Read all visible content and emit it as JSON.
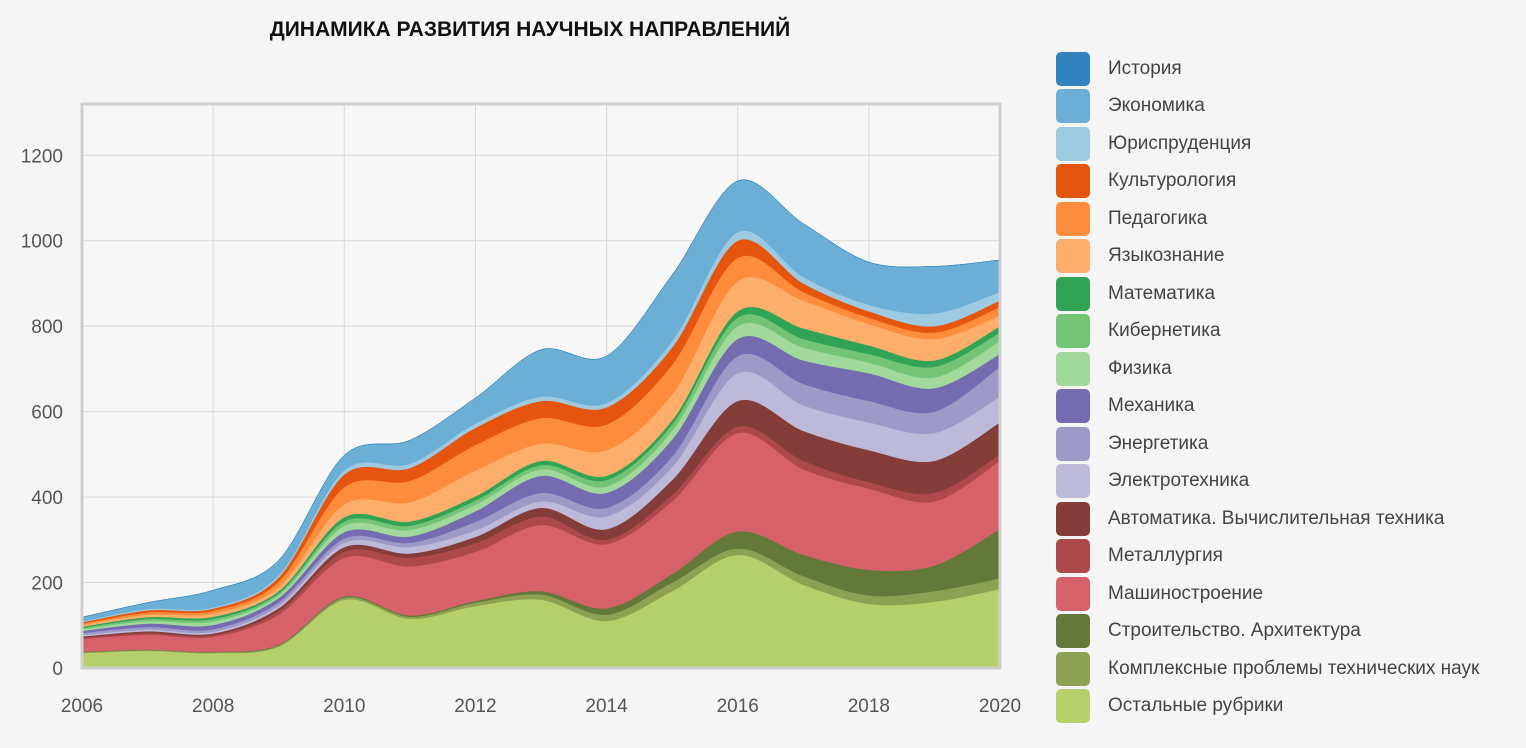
{
  "chart_data": {
    "type": "area",
    "stacked": true,
    "title": "ДИНАМИКА РАЗВИТИЯ НАУЧНЫХ НАПРАВЛЕНИЙ",
    "xlabel": "",
    "ylabel": "",
    "x": [
      2006,
      2007,
      2008,
      2009,
      2010,
      2011,
      2012,
      2013,
      2014,
      2015,
      2016,
      2017,
      2018,
      2019,
      2020
    ],
    "xlim": [
      2006,
      2020
    ],
    "ylim": [
      0,
      1320
    ],
    "x_ticks": [
      "2006",
      "2008",
      "2010",
      "2012",
      "2014",
      "2016",
      "2018",
      "2020"
    ],
    "y_ticks": [
      "0",
      "200",
      "400",
      "600",
      "800",
      "1000",
      "1200"
    ],
    "grid": true,
    "legend_position": "right",
    "series": [
      {
        "name": "Остальные рубрики",
        "color": "#b5cf6b",
        "values": [
          35,
          40,
          35,
          50,
          160,
          115,
          145,
          160,
          110,
          180,
          265,
          195,
          150,
          155,
          185
        ]
      },
      {
        "name": "Комплексные проблемы технических наук",
        "color": "#8ca252",
        "values": [
          2,
          2,
          2,
          3,
          5,
          5,
          8,
          12,
          15,
          20,
          15,
          20,
          20,
          25,
          25
        ]
      },
      {
        "name": "Строительство. Архитектура",
        "color": "#637939",
        "values": [
          1,
          1,
          1,
          2,
          3,
          3,
          4,
          8,
          15,
          20,
          40,
          50,
          60,
          60,
          115
        ]
      },
      {
        "name": "Машиностроение",
        "color": "#d6616b",
        "values": [
          30,
          35,
          35,
          70,
          90,
          115,
          115,
          155,
          150,
          170,
          230,
          200,
          190,
          150,
          160
        ]
      },
      {
        "name": "Металлургия",
        "color": "#ad494a",
        "values": [
          3,
          4,
          4,
          8,
          15,
          20,
          20,
          20,
          10,
          15,
          15,
          20,
          15,
          20,
          15
        ]
      },
      {
        "name": "Автоматика. Вычислительная техника",
        "color": "#843c39",
        "values": [
          3,
          4,
          4,
          7,
          10,
          10,
          15,
          20,
          25,
          35,
          60,
          70,
          75,
          75,
          75
        ]
      },
      {
        "name": "Электротехника",
        "color": "#bdbad9",
        "values": [
          3,
          4,
          4,
          6,
          10,
          15,
          15,
          15,
          30,
          30,
          65,
          60,
          65,
          65,
          60
        ]
      },
      {
        "name": "Энергетика",
        "color": "#9e9ac8",
        "values": [
          5,
          6,
          6,
          8,
          10,
          10,
          20,
          20,
          20,
          25,
          40,
          50,
          50,
          50,
          70
        ]
      },
      {
        "name": "Механика",
        "color": "#756bb1",
        "values": [
          5,
          8,
          10,
          10,
          15,
          15,
          25,
          40,
          35,
          40,
          40,
          55,
          65,
          55,
          30
        ]
      },
      {
        "name": "Физика",
        "color": "#a1d99b",
        "values": [
          4,
          6,
          8,
          6,
          15,
          15,
          15,
          15,
          15,
          20,
          30,
          30,
          25,
          25,
          30
        ]
      },
      {
        "name": "Кибернетика",
        "color": "#74c476",
        "values": [
          3,
          5,
          6,
          5,
          10,
          10,
          10,
          10,
          15,
          15,
          20,
          20,
          20,
          25,
          20
        ]
      },
      {
        "name": "Математика",
        "color": "#31a354",
        "values": [
          3,
          4,
          5,
          5,
          10,
          10,
          10,
          10,
          10,
          10,
          15,
          25,
          20,
          15,
          15
        ]
      },
      {
        "name": "Языкознание",
        "color": "#fdae6b",
        "values": [
          4,
          6,
          8,
          10,
          30,
          45,
          60,
          40,
          60,
          60,
          70,
          65,
          50,
          50,
          25
        ]
      },
      {
        "name": "Педагогика",
        "color": "#fd8d3c",
        "values": [
          3,
          5,
          6,
          12,
          40,
          50,
          60,
          60,
          60,
          70,
          55,
          20,
          15,
          15,
          20
        ]
      },
      {
        "name": "Культурология",
        "color": "#e6550d",
        "values": [
          3,
          5,
          5,
          10,
          30,
          30,
          40,
          40,
          40,
          40,
          40,
          20,
          15,
          15,
          15
        ]
      },
      {
        "name": "Юриспруденция",
        "color": "#9ecae1",
        "values": [
          2,
          3,
          3,
          5,
          10,
          10,
          10,
          10,
          10,
          15,
          20,
          15,
          15,
          30,
          20
        ]
      },
      {
        "name": "Экономика",
        "color": "#6baed6",
        "values": [
          10,
          15,
          40,
          35,
          35,
          55,
          60,
          110,
          110,
          155,
          120,
          125,
          100,
          110,
          75
        ]
      },
      {
        "name": "История",
        "color": "#3182bd",
        "values": [
          0,
          0,
          0,
          0,
          0,
          0,
          0,
          0,
          0,
          0,
          0,
          0,
          0,
          0,
          0
        ]
      }
    ]
  }
}
